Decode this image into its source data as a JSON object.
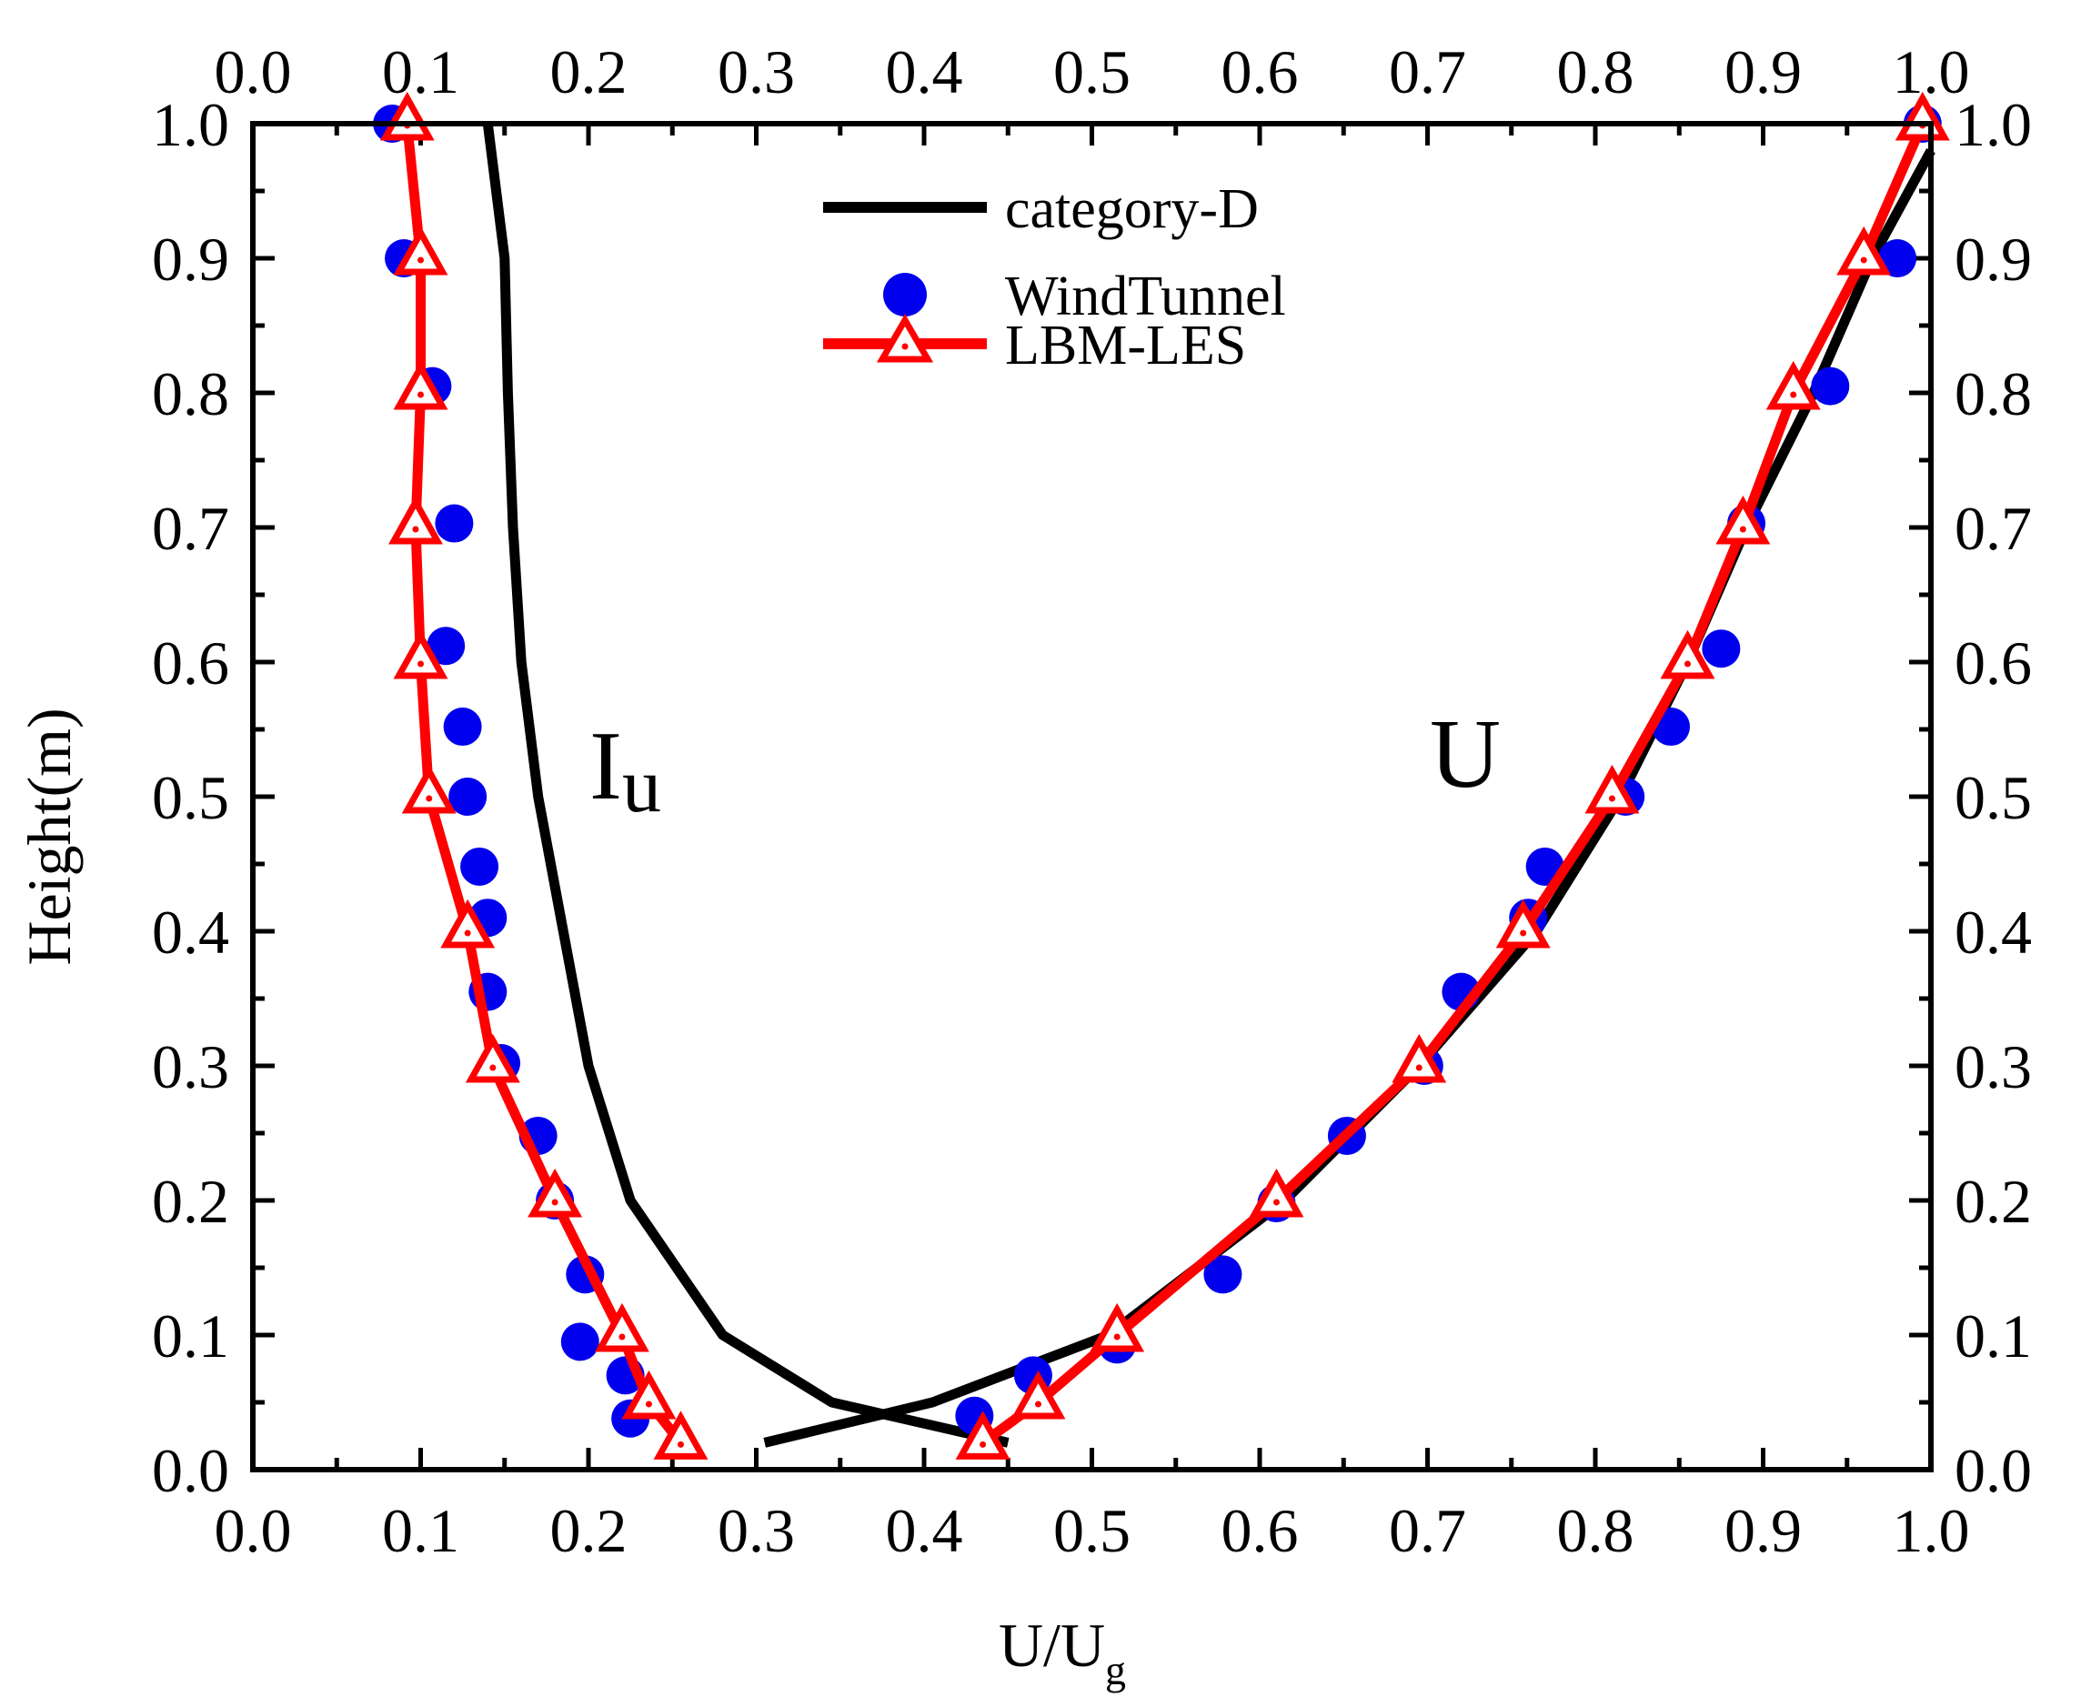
{
  "chart_data": {
    "type": "line",
    "title": "",
    "xlabel": "U/U",
    "xlabel_subscript": "g",
    "ylabel": "Height(m)",
    "xlim": [
      0.0,
      1.0
    ],
    "ylim": [
      0.0,
      1.0
    ],
    "x_ticks": [
      "0.0",
      "0.1",
      "0.2",
      "0.3",
      "0.4",
      "0.5",
      "0.6",
      "0.7",
      "0.8",
      "0.9",
      "1.0"
    ],
    "y_ticks": [
      "0.0",
      "0.1",
      "0.2",
      "0.3",
      "0.4",
      "0.5",
      "0.6",
      "0.7",
      "0.8",
      "0.9",
      "1.0"
    ],
    "grid": false,
    "legend_position": "top-center",
    "annotations": [
      {
        "text": "I",
        "subscript": "u",
        "x": 0.205,
        "y": 0.5
      },
      {
        "text": "U",
        "x": 0.72,
        "y": 0.52
      }
    ],
    "series": [
      {
        "name": "category-D",
        "style": "line",
        "color": "#000000",
        "legend": true,
        "points": [
          [
            0.14,
            1.0
          ],
          [
            0.15,
            0.9
          ],
          [
            0.152,
            0.8
          ],
          [
            0.155,
            0.7
          ],
          [
            0.16,
            0.6
          ],
          [
            0.17,
            0.5
          ],
          [
            0.185,
            0.4
          ],
          [
            0.2,
            0.3
          ],
          [
            0.225,
            0.2
          ],
          [
            0.28,
            0.1
          ],
          [
            0.345,
            0.05
          ],
          [
            0.45,
            0.02
          ]
        ]
      },
      {
        "name": "category-D (U)",
        "style": "line",
        "color": "#000000",
        "legend": false,
        "points": [
          [
            0.305,
            0.02
          ],
          [
            0.405,
            0.05
          ],
          [
            0.51,
            0.1
          ],
          [
            0.615,
            0.2
          ],
          [
            0.695,
            0.3
          ],
          [
            0.765,
            0.4
          ],
          [
            0.815,
            0.5
          ],
          [
            0.855,
            0.6
          ],
          [
            0.89,
            0.7
          ],
          [
            0.93,
            0.8
          ],
          [
            0.965,
            0.9
          ],
          [
            1.0,
            0.98
          ]
        ]
      },
      {
        "name": "WindTunnel",
        "style": "scatter",
        "color": "#0000ee",
        "legend": true,
        "points": [
          [
            0.083,
            1.0
          ],
          [
            0.09,
            0.9
          ],
          [
            0.107,
            0.805
          ],
          [
            0.12,
            0.703
          ],
          [
            0.115,
            0.612
          ],
          [
            0.125,
            0.552
          ],
          [
            0.128,
            0.5
          ],
          [
            0.135,
            0.448
          ],
          [
            0.14,
            0.41
          ],
          [
            0.14,
            0.355
          ],
          [
            0.148,
            0.302
          ],
          [
            0.17,
            0.248
          ],
          [
            0.18,
            0.2
          ],
          [
            0.198,
            0.145
          ],
          [
            0.195,
            0.095
          ],
          [
            0.222,
            0.07
          ],
          [
            0.225,
            0.038
          ]
        ]
      },
      {
        "name": "WindTunnel (U)",
        "style": "scatter",
        "color": "#0000ee",
        "legend": false,
        "points": [
          [
            0.43,
            0.04
          ],
          [
            0.465,
            0.07
          ],
          [
            0.515,
            0.093
          ],
          [
            0.578,
            0.145
          ],
          [
            0.61,
            0.198
          ],
          [
            0.652,
            0.248
          ],
          [
            0.698,
            0.3
          ],
          [
            0.72,
            0.355
          ],
          [
            0.76,
            0.41
          ],
          [
            0.77,
            0.448
          ],
          [
            0.818,
            0.5
          ],
          [
            0.845,
            0.552
          ],
          [
            0.875,
            0.61
          ],
          [
            0.89,
            0.703
          ],
          [
            0.94,
            0.805
          ],
          [
            0.98,
            0.9
          ],
          [
            0.995,
            1.0
          ]
        ]
      },
      {
        "name": "LBM-LES",
        "style": "line-marker",
        "color": "#ff0000",
        "legend": true,
        "points": [
          [
            0.092,
            1.0
          ],
          [
            0.1,
            0.9
          ],
          [
            0.1,
            0.8
          ],
          [
            0.097,
            0.7
          ],
          [
            0.1,
            0.6
          ],
          [
            0.105,
            0.5
          ],
          [
            0.128,
            0.4
          ],
          [
            0.143,
            0.3
          ],
          [
            0.18,
            0.2
          ],
          [
            0.22,
            0.1
          ],
          [
            0.236,
            0.05
          ],
          [
            0.255,
            0.02
          ]
        ]
      },
      {
        "name": "LBM-LES (U)",
        "style": "line-marker",
        "color": "#ff0000",
        "legend": false,
        "points": [
          [
            0.435,
            0.02
          ],
          [
            0.468,
            0.05
          ],
          [
            0.515,
            0.1
          ],
          [
            0.61,
            0.2
          ],
          [
            0.695,
            0.3
          ],
          [
            0.757,
            0.4
          ],
          [
            0.81,
            0.5
          ],
          [
            0.855,
            0.6
          ],
          [
            0.888,
            0.7
          ],
          [
            0.918,
            0.8
          ],
          [
            0.96,
            0.9
          ],
          [
            0.995,
            1.0
          ]
        ]
      }
    ]
  }
}
